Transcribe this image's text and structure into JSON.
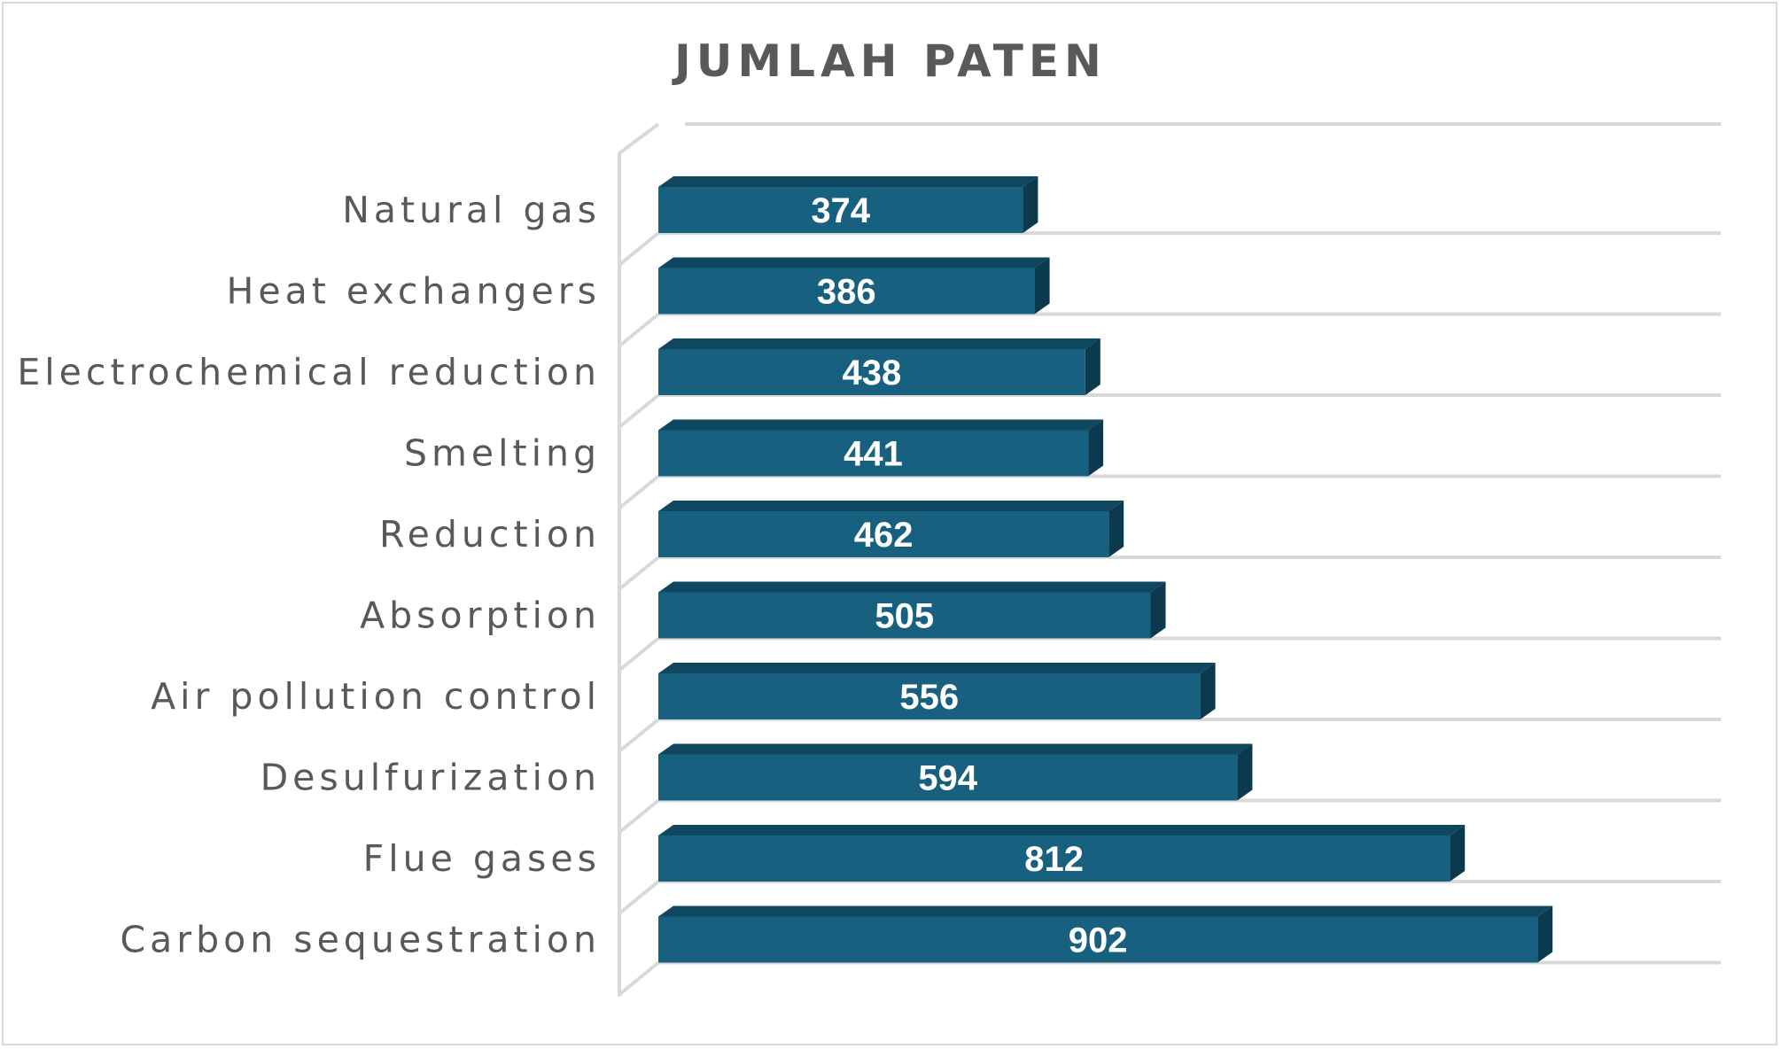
{
  "chart_data": {
    "type": "bar",
    "orientation": "horizontal",
    "style": "3d",
    "title": "JUMLAH PATEN",
    "xlabel": "",
    "ylabel": "",
    "categories": [
      "Natural gas",
      "Heat exchangers",
      "Electrochemical reduction",
      "Smelting",
      "Reduction",
      "Absorption",
      "Air pollution control",
      "Desulfurization",
      "Flue gases",
      "Carbon sequestration"
    ],
    "values": [
      374,
      386,
      438,
      441,
      462,
      505,
      556,
      594,
      812,
      902
    ],
    "data_labels": [
      "374",
      "386",
      "438",
      "441",
      "462",
      "505",
      "556",
      "594",
      "812",
      "902"
    ],
    "xlim": [
      0,
      1000
    ],
    "grid": true,
    "legend": "none",
    "colors": {
      "bar_front": "#17607f",
      "bar_top": "#0f4761",
      "bar_side": "#0b3a4f",
      "gridline": "#d9d9d9",
      "text": "#595959",
      "value_text": "#ffffff"
    }
  }
}
